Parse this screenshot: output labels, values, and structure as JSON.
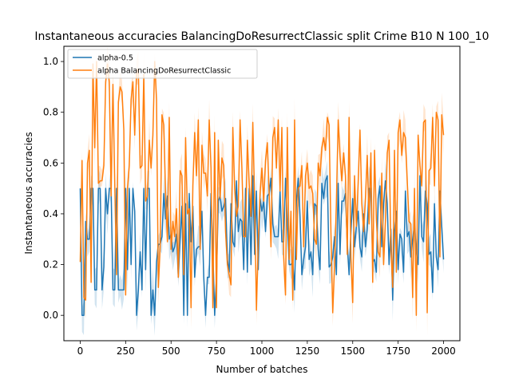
{
  "chart_data": {
    "type": "line",
    "title": "Instantaneous accuracies BalancingDoResurrectClassic split Crime B10 N 100_10",
    "xlabel": "Number of batches",
    "ylabel": "Instantaneous accuracies",
    "xlim": [
      -90,
      2090
    ],
    "ylim": [
      -0.1,
      1.06
    ],
    "xticks": [
      0,
      250,
      500,
      750,
      1000,
      1250,
      1500,
      1750,
      2000
    ],
    "xtick_labels": [
      "0",
      "250",
      "500",
      "750",
      "1000",
      "1250",
      "1500",
      "1750",
      "2000"
    ],
    "yticks": [
      0.0,
      0.2,
      0.4,
      0.6,
      0.8,
      1.0
    ],
    "ytick_labels": [
      "0.0",
      "0.2",
      "0.4",
      "0.6",
      "0.8",
      "1.0"
    ],
    "grid": false,
    "legend_position": "top-left",
    "series": [
      {
        "name": "alpha-0.5",
        "color": "#1f77b4",
        "band_color": "#1f77b4",
        "x_range": [
          0,
          2000
        ],
        "points": 201,
        "min": 0.0,
        "max": 0.6,
        "typical_range": [
          0.1,
          0.5
        ]
      },
      {
        "name": "alpha BalancingDoResurrectClassic",
        "color": "#ff7f0e",
        "band_color": "#ff7f0e",
        "x_range": [
          0,
          2000
        ],
        "points": 201,
        "min": 0.0,
        "max": 1.0,
        "typical_range": [
          0.1,
          0.8
        ]
      }
    ]
  }
}
